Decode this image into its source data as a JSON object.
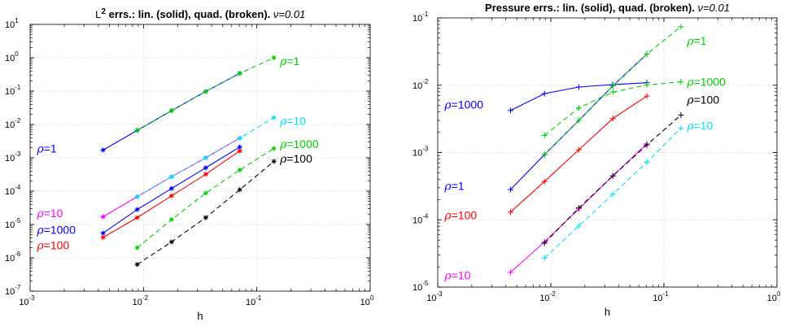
{
  "chart_data": [
    {
      "type": "line",
      "title_main": "errs.: lin. (solid), quad. (broken).",
      "title_prefix": "L",
      "title_sup": "2",
      "title_nu": "ν=0.01",
      "xlabel": "h",
      "ylabel": "",
      "x_scale": "log",
      "y_scale": "log",
      "xlim": [
        0.001,
        1
      ],
      "ylim": [
        1e-07,
        10
      ],
      "x_ticks": [
        {
          "base": "10",
          "exp": "-3"
        },
        {
          "base": "10",
          "exp": "-2"
        },
        {
          "base": "10",
          "exp": "-1"
        },
        {
          "base": "10",
          "exp": "0"
        }
      ],
      "y_ticks": [
        {
          "base": "10",
          "exp": "-7"
        },
        {
          "base": "10",
          "exp": "-6"
        },
        {
          "base": "10",
          "exp": "-5"
        },
        {
          "base": "10",
          "exp": "-4"
        },
        {
          "base": "10",
          "exp": "-3"
        },
        {
          "base": "10",
          "exp": "-2"
        },
        {
          "base": "10",
          "exp": "-1"
        },
        {
          "base": "10",
          "exp": "0"
        },
        {
          "base": "10",
          "exp": "1"
        }
      ],
      "grid": true,
      "series": [
        {
          "color": "#0000ff",
          "dash": false,
          "marker": "*",
          "x": [
            0.0044,
            0.0088,
            0.0177,
            0.0354,
            0.0707
          ],
          "y": [
            0.0017,
            0.0066,
            0.026,
            0.097,
            0.34
          ]
        },
        {
          "color": "#00d000",
          "dash": true,
          "marker": "*",
          "x": [
            0.0088,
            0.0177,
            0.0354,
            0.0707,
            0.1414
          ],
          "y": [
            0.0066,
            0.026,
            0.097,
            0.34,
            1.0
          ]
        },
        {
          "color": "#ff00ff",
          "dash": false,
          "marker": "*",
          "x": [
            0.0044,
            0.0088,
            0.0177,
            0.0354,
            0.0707
          ],
          "y": [
            1.7e-05,
            6.8e-05,
            0.00027,
            0.001,
            0.0039
          ]
        },
        {
          "color": "#00e0ff",
          "dash": true,
          "marker": "*",
          "x": [
            0.0088,
            0.0177,
            0.0354,
            0.0707,
            0.1414
          ],
          "y": [
            6.8e-05,
            0.00027,
            0.001,
            0.0039,
            0.016
          ]
        },
        {
          "color": "#0000ff",
          "dash": false,
          "marker": "*",
          "x": [
            0.0044,
            0.0088,
            0.0177,
            0.0354,
            0.0707
          ],
          "y": [
            5.5e-06,
            2.8e-05,
            0.00012,
            0.0005,
            0.0021
          ]
        },
        {
          "color": "#ff0000",
          "dash": false,
          "marker": "*",
          "x": [
            0.0044,
            0.0088,
            0.0177,
            0.0354,
            0.0707
          ],
          "y": [
            4.1e-06,
            1.6e-05,
            7.2e-05,
            0.00032,
            0.0016
          ]
        },
        {
          "color": "#00d000",
          "dash": true,
          "marker": "*",
          "x": [
            0.0088,
            0.0177,
            0.0354,
            0.0707,
            0.1414
          ],
          "y": [
            2e-06,
            1.4e-05,
            8.7e-05,
            0.00043,
            0.0019
          ]
        },
        {
          "color": "#000000",
          "dash": true,
          "marker": "*",
          "x": [
            0.0088,
            0.0177,
            0.0354,
            0.0707,
            0.1414
          ],
          "y": [
            6.3e-07,
            3e-06,
            1.6e-05,
            0.00011,
            0.00078
          ]
        }
      ],
      "annotations": [
        {
          "sym": "ρ",
          "text": "=1",
          "color": "#00d000",
          "x": 0.16,
          "y": 0.8
        },
        {
          "sym": "ρ",
          "text": "=10",
          "color": "#00e0ff",
          "x": 0.16,
          "y": 0.013
        },
        {
          "sym": "ρ",
          "text": "=1000",
          "color": "#00d000",
          "x": 0.16,
          "y": 0.0026
        },
        {
          "sym": "ρ",
          "text": "=100",
          "color": "#000000",
          "x": 0.16,
          "y": 0.00095
        },
        {
          "sym": "ρ",
          "text": "=1",
          "color": "#0000ff",
          "x": 0.00115,
          "y": 0.0019
        },
        {
          "sym": "ρ",
          "text": "=10",
          "color": "#ff00ff",
          "x": 0.00115,
          "y": 2.2e-05
        },
        {
          "sym": "ρ",
          "text": "=1000",
          "color": "#0000ff",
          "x": 0.00115,
          "y": 6.9e-06
        },
        {
          "sym": "ρ",
          "text": "=100",
          "color": "#ff0000",
          "x": 0.00115,
          "y": 2.4e-06
        }
      ]
    },
    {
      "type": "line",
      "title_main": "Pressure errs.: lin. (solid), quad. (broken).",
      "title_nu": "ν=0.01",
      "xlabel": "h",
      "ylabel": "",
      "x_scale": "log",
      "y_scale": "log",
      "xlim": [
        0.001,
        1
      ],
      "ylim": [
        1e-05,
        0.1
      ],
      "x_ticks": [
        {
          "base": "10",
          "exp": "-3"
        },
        {
          "base": "10",
          "exp": "-2"
        },
        {
          "base": "10",
          "exp": "-1"
        },
        {
          "base": "10",
          "exp": "0"
        }
      ],
      "y_ticks": [
        {
          "base": "10",
          "exp": "-5"
        },
        {
          "base": "10",
          "exp": "-4"
        },
        {
          "base": "10",
          "exp": "-3"
        },
        {
          "base": "10",
          "exp": "-2"
        },
        {
          "base": "10",
          "exp": "-1"
        }
      ],
      "grid": true,
      "series": [
        {
          "color": "#0000ff",
          "dash": false,
          "marker": "+",
          "x": [
            0.0044,
            0.0088,
            0.0177,
            0.0354,
            0.0707
          ],
          "y": [
            0.0042,
            0.0075,
            0.0094,
            0.0102,
            0.0109
          ]
        },
        {
          "color": "#00d000",
          "dash": true,
          "marker": "+",
          "x": [
            0.0088,
            0.0177,
            0.0354,
            0.0707,
            0.1414
          ],
          "y": [
            0.0018,
            0.0046,
            0.0079,
            0.0101,
            0.0112
          ]
        },
        {
          "color": "#0000ff",
          "dash": false,
          "marker": "+",
          "x": [
            0.0044,
            0.0088,
            0.0177,
            0.0354,
            0.0707
          ],
          "y": [
            0.00028,
            0.00093,
            0.003,
            0.0098,
            0.029
          ]
        },
        {
          "color": "#00d000",
          "dash": true,
          "marker": "+",
          "x": [
            0.0088,
            0.0177,
            0.0354,
            0.0707,
            0.1414
          ],
          "y": [
            0.00093,
            0.003,
            0.0098,
            0.029,
            0.074
          ]
        },
        {
          "color": "#ff0000",
          "dash": false,
          "marker": "+",
          "x": [
            0.0044,
            0.0088,
            0.0177,
            0.0354,
            0.0707
          ],
          "y": [
            0.00013,
            0.00037,
            0.0011,
            0.0032,
            0.0069
          ]
        },
        {
          "color": "#ff00ff",
          "dash": false,
          "marker": "+",
          "x": [
            0.0044,
            0.0088,
            0.0177,
            0.0354,
            0.0707
          ],
          "y": [
            1.65e-05,
            4.7e-05,
            0.000145,
            0.00045,
            0.00135
          ]
        },
        {
          "color": "#000000",
          "dash": true,
          "marker": "+",
          "x": [
            0.0088,
            0.0177,
            0.0354,
            0.0707,
            0.1414
          ],
          "y": [
            4.5e-05,
            0.00015,
            0.00045,
            0.0013,
            0.0036
          ]
        },
        {
          "color": "#00e0ff",
          "dash": true,
          "marker": "+",
          "x": [
            0.0088,
            0.0177,
            0.0354,
            0.0707,
            0.1414
          ],
          "y": [
            2.7e-05,
            8.1e-05,
            0.00024,
            0.00072,
            0.0023
          ]
        }
      ],
      "annotations": [
        {
          "sym": "ρ",
          "text": "=1",
          "color": "#00d000",
          "x": 0.16,
          "y": 0.046
        },
        {
          "sym": "ρ",
          "text": "=1000",
          "color": "#00d000",
          "x": 0.16,
          "y": 0.0112
        },
        {
          "sym": "ρ",
          "text": "=100",
          "color": "#000000",
          "x": 0.16,
          "y": 0.0061
        },
        {
          "sym": "ρ",
          "text": "=10",
          "color": "#00e0ff",
          "x": 0.16,
          "y": 0.0025
        },
        {
          "sym": "ρ",
          "text": "=1000",
          "color": "#0000ff",
          "x": 0.00115,
          "y": 0.0052
        },
        {
          "sym": "ρ",
          "text": "=1",
          "color": "#0000ff",
          "x": 0.00115,
          "y": 0.00032
        },
        {
          "sym": "ρ",
          "text": "=100",
          "color": "#ff0000",
          "x": 0.00115,
          "y": 0.000118
        },
        {
          "sym": "ρ",
          "text": "=10",
          "color": "#ff00ff",
          "x": 0.00115,
          "y": 1.5e-05
        }
      ]
    }
  ]
}
